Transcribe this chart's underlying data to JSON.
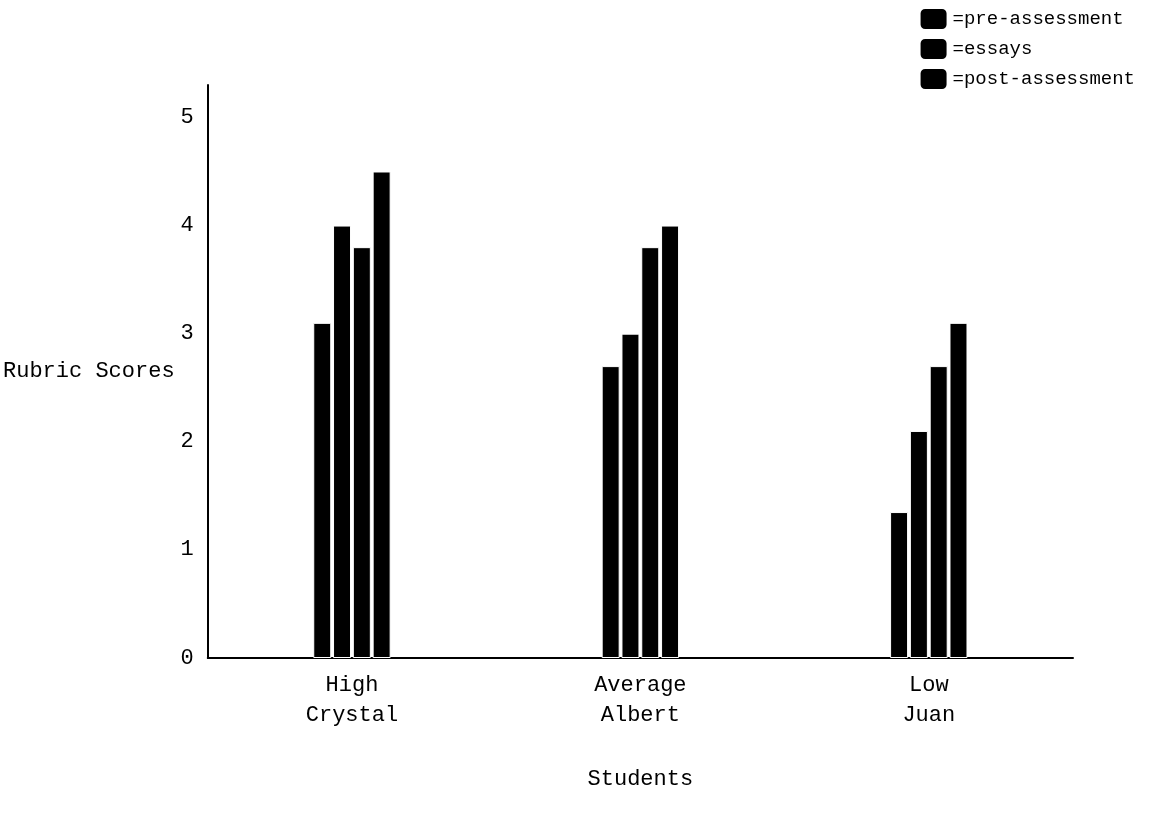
{
  "chart_data": {
    "type": "bar",
    "xlabel": "Students",
    "ylabel": "Rubric Scores",
    "categories": [
      "High\nCrystal",
      "Average\nAlbert",
      "Low\nJuan"
    ],
    "series": [
      {
        "name": "=pre-assessment",
        "color": "#000000",
        "values": [
          3.1,
          2.7,
          1.35
        ]
      },
      {
        "name": "=essays",
        "color": "#000000",
        "values": [
          4.0,
          3.0,
          2.1
        ]
      },
      {
        "color": "#000000",
        "values": [
          3.8,
          3.8,
          2.7
        ]
      },
      {
        "name": "=post-assessment",
        "color": "#000000",
        "values": [
          4.5,
          4.0,
          3.1
        ]
      }
    ],
    "ylim": [
      0,
      5.3
    ],
    "yticks": [
      0,
      1,
      2,
      3,
      4,
      5
    ],
    "grid": false,
    "legend": "top right"
  }
}
